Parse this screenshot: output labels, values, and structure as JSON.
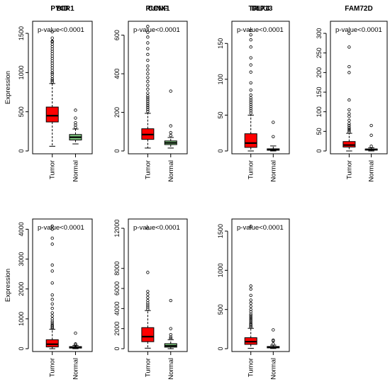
{
  "colors": {
    "tumor": "#ff0000",
    "normal": "#7fc97f",
    "outline": "#000000"
  },
  "chart_data": [
    {
      "type": "boxplot",
      "title": "BID",
      "ylabel": "Expression",
      "annotation": "p-value<0.0001",
      "yticks": [
        0,
        500,
        1000,
        1500
      ],
      "ylim": [
        0,
        1600
      ],
      "categories": [
        "Tumor",
        "Normal"
      ],
      "boxes": [
        {
          "name": "Tumor",
          "color": "tumor",
          "min": 60,
          "q1": 370,
          "median": 450,
          "q3": 560,
          "max": 860,
          "outliers": [
            880,
            900,
            920,
            950,
            980,
            1000,
            1030,
            1060,
            1090,
            1120,
            1150,
            1180,
            1210,
            1240,
            1270,
            1300,
            1330,
            1360,
            1390,
            1400,
            1440,
            1520
          ]
        },
        {
          "name": "Normal",
          "color": "normal",
          "min": 90,
          "q1": 140,
          "median": 175,
          "q3": 210,
          "max": 280,
          "outliers": [
            300,
            330,
            360,
            420,
            520
          ]
        }
      ]
    },
    {
      "type": "boxplot",
      "title": "CCNF",
      "ylabel": "",
      "annotation": "p-value<0.0001",
      "yticks": [
        0,
        200,
        400,
        600
      ],
      "ylim": [
        0,
        650
      ],
      "categories": [
        "Tumor",
        "Normal"
      ],
      "boxes": [
        {
          "name": "Tumor",
          "color": "tumor",
          "min": 15,
          "q1": 60,
          "median": 85,
          "q3": 115,
          "max": 195,
          "outliers": [
            205,
            215,
            225,
            235,
            245,
            255,
            265,
            275,
            285,
            300,
            320,
            340,
            360,
            380,
            400,
            420,
            440,
            470,
            500,
            530,
            560,
            590,
            615,
            645
          ]
        },
        {
          "name": "Normal",
          "color": "normal",
          "min": 15,
          "q1": 33,
          "median": 42,
          "q3": 52,
          "max": 70,
          "outliers": [
            80,
            95,
            130,
            310
          ]
        }
      ]
    },
    {
      "type": "boxplot",
      "title": "DLX4",
      "ylabel": "",
      "annotation": "p-value<0.0001",
      "yticks": [
        0,
        50,
        100,
        150
      ],
      "ylim": [
        0,
        175
      ],
      "categories": [
        "Tumor",
        "Normal"
      ],
      "boxes": [
        {
          "name": "Tumor",
          "color": "tumor",
          "min": 0,
          "q1": 5,
          "median": 11,
          "q3": 24,
          "max": 50,
          "outliers": [
            53,
            56,
            59,
            62,
            65,
            68,
            71,
            74,
            78,
            85,
            95,
            110,
            120,
            130,
            145,
            155,
            162,
            168
          ]
        },
        {
          "name": "Normal",
          "color": "normal",
          "min": 0,
          "q1": 1,
          "median": 2,
          "q3": 3,
          "max": 7,
          "outliers": [
            20,
            40
          ]
        }
      ]
    },
    {
      "type": "boxplot",
      "title": "FAM72D",
      "ylabel": "",
      "annotation": "p-value<0.0001",
      "yticks": [
        0,
        50,
        100,
        150,
        200,
        250,
        300
      ],
      "ylim": [
        0,
        320
      ],
      "categories": [
        "Tumor",
        "Normal"
      ],
      "boxes": [
        {
          "name": "Tumor",
          "color": "tumor",
          "min": 0,
          "q1": 10,
          "median": 15,
          "q3": 24,
          "max": 45,
          "outliers": [
            48,
            52,
            56,
            60,
            65,
            70,
            78,
            88,
            95,
            105,
            130,
            200,
            215,
            265,
            300
          ]
        },
        {
          "name": "Normal",
          "color": "normal",
          "min": 0,
          "q1": 2,
          "median": 4,
          "q3": 5,
          "max": 8,
          "outliers": [
            12,
            40,
            65
          ]
        }
      ]
    },
    {
      "type": "boxplot",
      "title": "PYCR1",
      "ylabel": "Expression",
      "annotation": "p-value<0.0001",
      "yticks": [
        0,
        1000,
        2000,
        3000,
        4000
      ],
      "ylim": [
        0,
        4200
      ],
      "categories": [
        "Tumor",
        "Normal"
      ],
      "boxes": [
        {
          "name": "Tumor",
          "color": "tumor",
          "min": 0,
          "q1": 60,
          "median": 150,
          "q3": 300,
          "max": 650,
          "outliers": [
            680,
            720,
            760,
            800,
            860,
            920,
            1000,
            1100,
            1200,
            1350,
            1500,
            1650,
            1800,
            2200,
            2600,
            2800,
            3500,
            3700,
            4000,
            4100
          ]
        },
        {
          "name": "Normal",
          "color": "normal",
          "min": 0,
          "q1": 20,
          "median": 40,
          "q3": 70,
          "max": 110,
          "outliers": [
            130,
            160,
            520
          ]
        }
      ]
    },
    {
      "type": "boxplot",
      "title": "RUNX1",
      "ylabel": "",
      "annotation": "p-value<0.0001",
      "yticks": [
        0,
        2000,
        4000,
        6000,
        8000,
        12000
      ],
      "ylim": [
        0,
        12500
      ],
      "categories": [
        "Tumor",
        "Normal"
      ],
      "boxes": [
        {
          "name": "Tumor",
          "color": "tumor",
          "min": 50,
          "q1": 700,
          "median": 1200,
          "q3": 2100,
          "max": 3800,
          "outliers": [
            3950,
            4150,
            4350,
            4550,
            4800,
            5100,
            5400,
            5700,
            7600,
            12000
          ]
        },
        {
          "name": "Normal",
          "color": "normal",
          "min": 0,
          "q1": 150,
          "median": 280,
          "q3": 500,
          "max": 900,
          "outliers": [
            1000,
            1150,
            1400,
            2000,
            4800
          ]
        }
      ]
    },
    {
      "type": "boxplot",
      "title": "TRIP13",
      "ylabel": "",
      "annotation": "p-value<0.0001",
      "yticks": [
        0,
        500,
        1000,
        1500
      ],
      "ylim": [
        0,
        1600
      ],
      "categories": [
        "Tumor",
        "Normal"
      ],
      "boxes": [
        {
          "name": "Tumor",
          "color": "tumor",
          "min": 5,
          "q1": 55,
          "median": 90,
          "q3": 140,
          "max": 260,
          "outliers": [
            275,
            290,
            305,
            320,
            340,
            360,
            380,
            400,
            420,
            440,
            470,
            500,
            540,
            580,
            620,
            680,
            760,
            800,
            1560
          ]
        },
        {
          "name": "Normal",
          "color": "normal",
          "min": 2,
          "q1": 10,
          "median": 20,
          "q3": 28,
          "max": 45,
          "outliers": [
            60,
            100,
            110,
            240
          ]
        }
      ]
    }
  ]
}
